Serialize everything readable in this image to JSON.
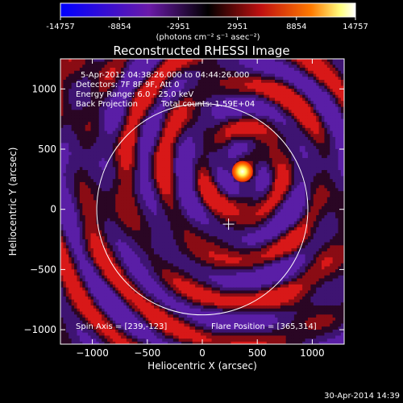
{
  "colorbar": {
    "ticks": [
      "-14757",
      "-8854",
      "-2951",
      "2951",
      "8854",
      "14757"
    ],
    "tick_values": [
      -14757,
      -8854,
      -2951,
      2951,
      8854,
      14757
    ],
    "range": [
      -14757,
      14757
    ],
    "unit_label": "(photons cm⁻² s⁻¹ asec⁻²)",
    "colors": [
      "#0000ff",
      "#5a1a9c",
      "#000000",
      "#c01010",
      "#ff7a00",
      "#ffff80",
      "#ffffff"
    ]
  },
  "chart_data": {
    "type": "heatmap",
    "title": "Reconstructed RHESSI Image",
    "xlabel": "Heliocentric X (arcsec)",
    "ylabel": "Heliocentric Y (arcsec)",
    "xlim": [
      -1290,
      1290
    ],
    "ylim": [
      -1120,
      1250
    ],
    "x_ticks": [
      -1000,
      -500,
      0,
      500,
      1000
    ],
    "y_ticks": [
      -1000,
      -500,
      0,
      500,
      1000
    ],
    "x_tick_labels": [
      "−1000",
      "−500",
      "0",
      "500",
      "1000"
    ],
    "y_tick_labels": [
      "−1000",
      "−500",
      "0",
      "500",
      "1000"
    ],
    "annotations": {
      "time_range": "5-Apr-2012 04:38:26.000 to 04:44:26.000",
      "detectors": "Detectors: 7F 8F 9F, Att 0",
      "energy": "Energy Range: 6.0 - 25.0 keV",
      "method": "Back Projection",
      "counts": "Total counts: 1.59E+04",
      "spin_axis": "Spin Axis = [239,-123]",
      "flare_position": "Flare Position = [365,314]"
    },
    "solar_radius_arcsec": 960,
    "spin_axis": [
      239,
      -123
    ],
    "flare_position": [
      365,
      314
    ],
    "peak_value": 14757
  },
  "timestamp": "30-Apr-2014 14:39"
}
